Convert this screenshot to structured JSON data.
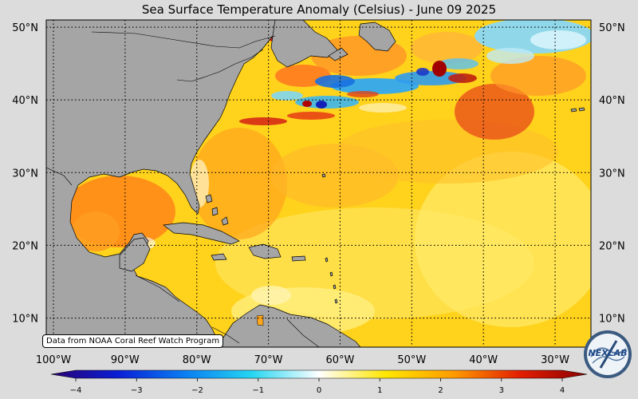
{
  "title": "Sea Surface Temperature Anomaly (Celsius) - June 09 2025",
  "credit": "Data from NOAA Coral Reef Watch Program",
  "logo_text": "NEXLAB",
  "map": {
    "lon_range": [
      -101,
      -25
    ],
    "lat_range": [
      6,
      51
    ],
    "lat_ticks": [
      {
        "value": 10,
        "label": "10°N"
      },
      {
        "value": 20,
        "label": "20°N"
      },
      {
        "value": 30,
        "label": "30°N"
      },
      {
        "value": 40,
        "label": "40°N"
      },
      {
        "value": 50,
        "label": "50°N"
      }
    ],
    "lon_ticks": [
      {
        "value": -100,
        "label": "100°W"
      },
      {
        "value": -90,
        "label": "90°W"
      },
      {
        "value": -80,
        "label": "80°W"
      },
      {
        "value": -70,
        "label": "70°W"
      },
      {
        "value": -60,
        "label": "60°W"
      },
      {
        "value": -50,
        "label": "50°W"
      },
      {
        "value": -40,
        "label": "40°W"
      },
      {
        "value": -30,
        "label": "30°W"
      }
    ],
    "grid": true,
    "land_color": "#a5a5a5"
  },
  "colorbar": {
    "range": [
      -4,
      4
    ],
    "tick_labels": [
      "−4",
      "−3",
      "−2",
      "−1",
      "0",
      "1",
      "2",
      "3",
      "4"
    ],
    "colors": [
      "#2b0072",
      "#0a1fd6",
      "#0a7ef2",
      "#25d6f2",
      "#ffffff",
      "#ffe600",
      "#ff9c00",
      "#e31f00",
      "#8a0000"
    ]
  }
}
